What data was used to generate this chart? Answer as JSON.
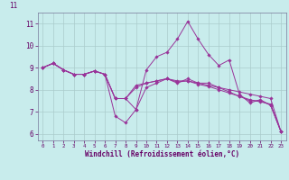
{
  "xlabel": "Windchill (Refroidissement éolien,°C)",
  "background_color": "#c8ecec",
  "line_color": "#993399",
  "grid_color": "#aacccc",
  "spine_color": "#777799",
  "tick_color": "#660066",
  "ylim": [
    5.7,
    11.5
  ],
  "xlim": [
    -0.5,
    23.5
  ],
  "xticks": [
    0,
    1,
    2,
    3,
    4,
    5,
    6,
    7,
    8,
    9,
    10,
    11,
    12,
    13,
    14,
    15,
    16,
    17,
    18,
    19,
    20,
    21,
    22,
    23
  ],
  "yticks": [
    6,
    7,
    8,
    9,
    10,
    11
  ],
  "series": [
    [
      9.0,
      9.2,
      8.9,
      8.7,
      8.7,
      8.85,
      8.7,
      6.8,
      6.5,
      7.1,
      8.9,
      9.5,
      9.7,
      10.3,
      11.1,
      10.3,
      9.6,
      9.1,
      9.35,
      7.8,
      7.4,
      7.55,
      7.3,
      6.1
    ],
    [
      9.0,
      9.2,
      8.9,
      8.7,
      8.7,
      8.85,
      8.7,
      7.6,
      7.6,
      7.1,
      8.1,
      8.3,
      8.5,
      8.3,
      8.5,
      8.3,
      8.3,
      8.1,
      7.9,
      7.7,
      7.5,
      7.5,
      7.3,
      6.1
    ],
    [
      9.0,
      9.2,
      8.9,
      8.7,
      8.7,
      8.85,
      8.7,
      7.6,
      7.6,
      8.2,
      8.3,
      8.4,
      8.5,
      8.35,
      8.4,
      8.25,
      8.15,
      8.0,
      7.85,
      7.7,
      7.55,
      7.45,
      7.35,
      6.1
    ],
    [
      9.0,
      9.2,
      8.9,
      8.7,
      8.7,
      8.85,
      8.7,
      7.6,
      7.6,
      8.1,
      8.3,
      8.4,
      8.5,
      8.4,
      8.4,
      8.3,
      8.2,
      8.1,
      8.0,
      7.9,
      7.8,
      7.7,
      7.6,
      6.1
    ]
  ],
  "top_label": "11",
  "xlabel_fontsize": 5.5,
  "xlabel_fontfamily": "monospace",
  "xtick_fontsize": 4.2,
  "ytick_fontsize": 5.5,
  "marker": "D",
  "markersize": 1.8,
  "linewidth": 0.7
}
